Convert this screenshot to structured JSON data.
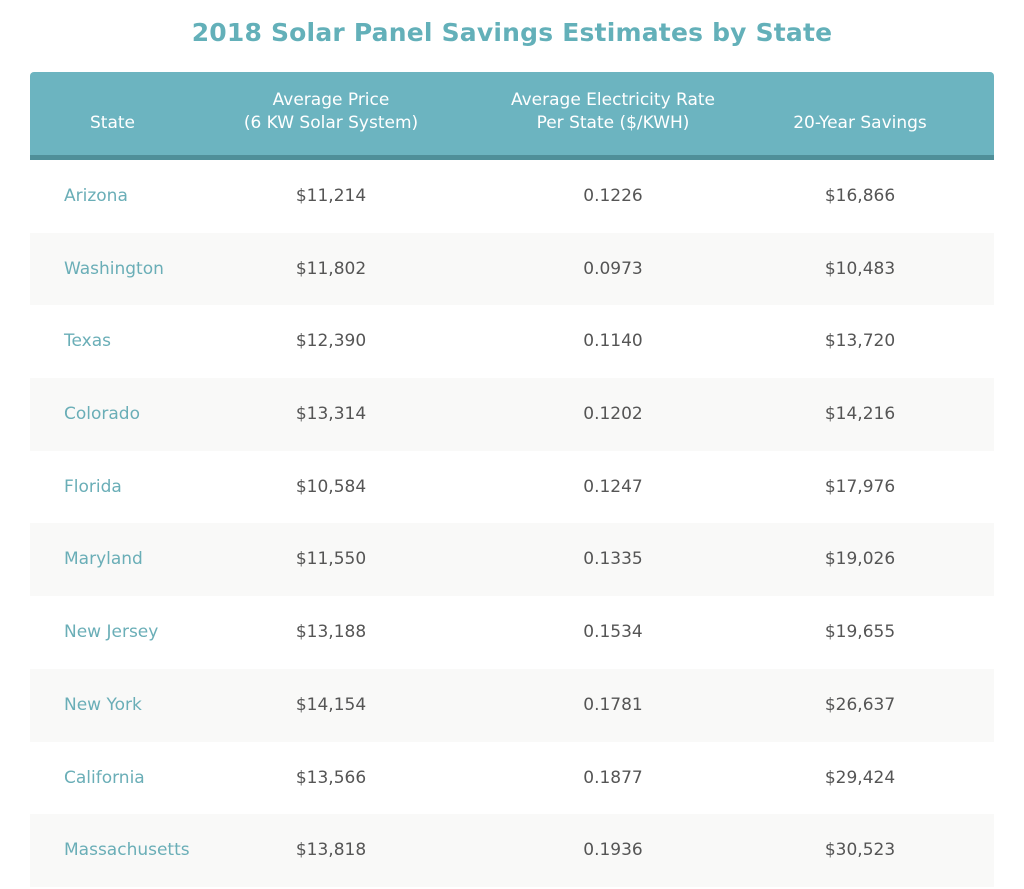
{
  "chart_data": {
    "type": "table",
    "title": "2018 Solar Panel Savings Estimates by State",
    "columns": [
      [
        "State"
      ],
      [
        "Average Price",
        "(6 KW Solar System)"
      ],
      [
        "Average Electricity Rate",
        "Per State ($/KWH)"
      ],
      [
        "20-Year Savings"
      ]
    ],
    "rows": [
      [
        "Arizona",
        "$11,214",
        "0.1226",
        "$16,866"
      ],
      [
        "Washington",
        "$11,802",
        "0.0973",
        "$10,483"
      ],
      [
        "Texas",
        "$12,390",
        "0.1140",
        "$13,720"
      ],
      [
        "Colorado",
        "$13,314",
        "0.1202",
        "$14,216"
      ],
      [
        "Florida",
        "$10,584",
        "0.1247",
        "$17,976"
      ],
      [
        "Maryland",
        "$11,550",
        "0.1335",
        "$19,026"
      ],
      [
        "New Jersey",
        "$13,188",
        "0.1534",
        "$19,655"
      ],
      [
        "New York",
        "$14,154",
        "0.1781",
        "$26,637"
      ],
      [
        "California",
        "$13,566",
        "0.1877",
        "$29,424"
      ],
      [
        "Massachusetts",
        "$13,818",
        "0.1936",
        "$30,523"
      ]
    ],
    "colors": {
      "header": "#6cb4c0",
      "header_border": "#4f8f99",
      "title": "#63b0b9",
      "state_text": "#6aaeb7",
      "alt_row": "#f9f9f8"
    }
  }
}
